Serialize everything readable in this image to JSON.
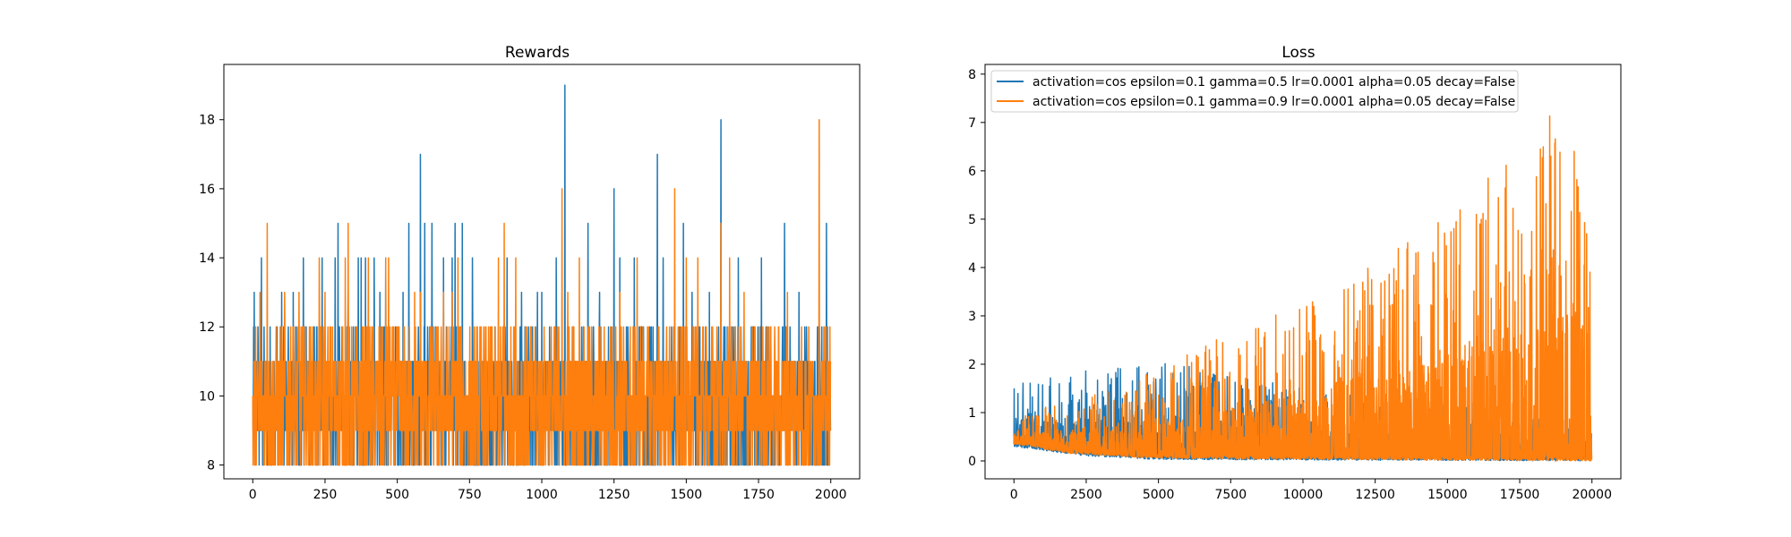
{
  "chart_data": [
    {
      "type": "line",
      "title": "Rewards",
      "xlabel": "",
      "ylabel": "",
      "xlim": [
        -100,
        2100
      ],
      "ylim": [
        7.6,
        19.6
      ],
      "xticks": [
        0,
        250,
        500,
        750,
        1000,
        1250,
        1500,
        1750,
        2000
      ],
      "yticks": [
        8,
        10,
        12,
        14,
        16,
        18
      ],
      "grid": false,
      "legend": false,
      "n_points": 2000,
      "series": [
        {
          "color": "#1f77b4",
          "base_range": [
            8,
            12
          ],
          "spikes": [
            [
              5,
              13
            ],
            [
              18,
              12
            ],
            [
              30,
              14
            ],
            [
              100,
              13
            ],
            [
              140,
              13
            ],
            [
              175,
              14
            ],
            [
              240,
              14
            ],
            [
              285,
              14
            ],
            [
              295,
              15
            ],
            [
              330,
              13
            ],
            [
              365,
              14
            ],
            [
              375,
              14
            ],
            [
              390,
              14
            ],
            [
              420,
              14
            ],
            [
              440,
              13
            ],
            [
              460,
              14
            ],
            [
              520,
              13
            ],
            [
              540,
              15
            ],
            [
              580,
              17
            ],
            [
              595,
              15
            ],
            [
              620,
              15
            ],
            [
              660,
              14
            ],
            [
              690,
              14
            ],
            [
              700,
              15
            ],
            [
              725,
              15
            ],
            [
              760,
              14
            ],
            [
              880,
              14
            ],
            [
              930,
              13
            ],
            [
              985,
              13
            ],
            [
              1000,
              13
            ],
            [
              1050,
              14
            ],
            [
              1080,
              19
            ],
            [
              1160,
              15
            ],
            [
              1200,
              13
            ],
            [
              1250,
              16
            ],
            [
              1270,
              14
            ],
            [
              1320,
              14
            ],
            [
              1400,
              17
            ],
            [
              1420,
              14
            ],
            [
              1490,
              15
            ],
            [
              1520,
              13
            ],
            [
              1580,
              13
            ],
            [
              1620,
              18
            ],
            [
              1680,
              14
            ],
            [
              1760,
              14
            ],
            [
              1840,
              15
            ],
            [
              1890,
              13
            ],
            [
              1910,
              12
            ],
            [
              1985,
              15
            ]
          ]
        },
        {
          "color": "#ff7f0e",
          "base_range": [
            8,
            12
          ],
          "spikes": [
            [
              25,
              13
            ],
            [
              50,
              15
            ],
            [
              110,
              13
            ],
            [
              160,
              13
            ],
            [
              230,
              14
            ],
            [
              250,
              13
            ],
            [
              320,
              14
            ],
            [
              330,
              15
            ],
            [
              400,
              14
            ],
            [
              460,
              14
            ],
            [
              470,
              14
            ],
            [
              560,
              13
            ],
            [
              580,
              13
            ],
            [
              660,
              13
            ],
            [
              690,
              13
            ],
            [
              710,
              14
            ],
            [
              850,
              14
            ],
            [
              870,
              15
            ],
            [
              910,
              14
            ],
            [
              1070,
              16
            ],
            [
              1090,
              13
            ],
            [
              1130,
              14
            ],
            [
              1270,
              13
            ],
            [
              1330,
              14
            ],
            [
              1460,
              16
            ],
            [
              1500,
              14
            ],
            [
              1540,
              14
            ],
            [
              1620,
              15
            ],
            [
              1650,
              14
            ],
            [
              1700,
              13
            ],
            [
              1850,
              13
            ],
            [
              1960,
              18
            ]
          ]
        }
      ]
    },
    {
      "type": "line",
      "title": "Loss",
      "xlabel": "",
      "ylabel": "",
      "xlim": [
        -1000,
        21000
      ],
      "ylim": [
        -0.37,
        8.2
      ],
      "xticks": [
        0,
        2500,
        5000,
        7500,
        10000,
        12500,
        15000,
        17500,
        20000
      ],
      "yticks": [
        0,
        1,
        2,
        3,
        4,
        5,
        6,
        7,
        8
      ],
      "grid": false,
      "legend_position": "upper-left",
      "n_points": 20000,
      "series": [
        {
          "name": "activation=cos epsilon=0.1 gamma=0.5 lr=0.0001 alpha=0.05 decay=False",
          "color": "#1f77b4",
          "envelope": [
            [
              0,
              1.6
            ],
            [
              2500,
              1.9
            ],
            [
              5000,
              2.1
            ],
            [
              7500,
              1.8
            ],
            [
              10000,
              1.5
            ],
            [
              12500,
              1.3
            ],
            [
              15000,
              1.3
            ],
            [
              17500,
              1.2
            ],
            [
              20000,
              1.6
            ]
          ],
          "floor": [
            [
              0,
              0.3
            ],
            [
              2500,
              0.1
            ],
            [
              5000,
              0.03
            ],
            [
              20000,
              0.0
            ]
          ]
        },
        {
          "name": "activation=cos epsilon=0.1 gamma=0.9 lr=0.0001 alpha=0.05 decay=False",
          "color": "#ff7f0e",
          "envelope": [
            [
              0,
              0.9
            ],
            [
              2500,
              1.4
            ],
            [
              5000,
              1.9
            ],
            [
              7500,
              2.7
            ],
            [
              10000,
              3.3
            ],
            [
              12500,
              4.3
            ],
            [
              15000,
              5.2
            ],
            [
              17500,
              6.5
            ],
            [
              19500,
              7.8
            ],
            [
              20000,
              5.0
            ]
          ],
          "floor": [
            [
              0,
              0.35
            ],
            [
              2000,
              0.15
            ],
            [
              5000,
              0.05
            ],
            [
              20000,
              0.0
            ]
          ]
        }
      ]
    }
  ]
}
